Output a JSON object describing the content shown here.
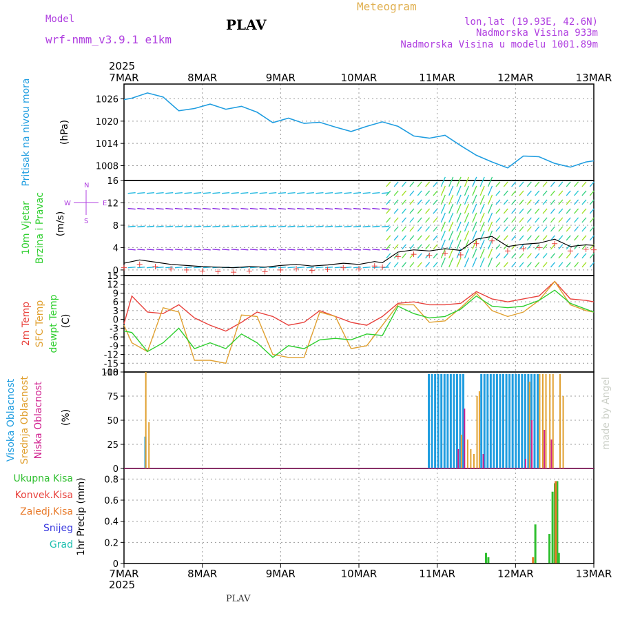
{
  "header": {
    "model_label": "Model",
    "model_name": "wrf-nmm_v3.9.1 e1km",
    "station": "PLAV",
    "meteogram": "Meteogram",
    "lonlat": "lon,lat (19.93E, 42.6N)",
    "altitude": "Nadmorska Visina 933m",
    "model_altitude": "Nadmorska Visina u modelu 1001.89m",
    "year_top": "2025",
    "year_bottom": "2025",
    "footer_station": "PLAV",
    "credit": "made by Angel"
  },
  "colors": {
    "pressure": "#1f9de0",
    "temp2m": "#e8413c",
    "sfc": "#e0a030",
    "dew": "#2fcf2f",
    "high_cloud": "#1f9de0",
    "mid_cloud": "#e0a030",
    "low_cloud": "#d0208f",
    "total_precip": "#2fbf2f",
    "conv_precip": "#e8413c",
    "strat_precip": "#e87a2a",
    "snow": "#3a3adf",
    "graupel": "#20c0b0",
    "purple": "#b040e0"
  },
  "chart_data": [
    {
      "type": "line",
      "panel": "pressure",
      "ylabel_rot": "Pritisak na nivou mora",
      "unit": "(hPa)",
      "x_ticks": [
        "7MAR",
        "8MAR",
        "9MAR",
        "10MAR",
        "11MAR",
        "12MAR",
        "13MAR"
      ],
      "ylim": [
        1004,
        1030
      ],
      "y_ticks": [
        1008,
        1014,
        1020,
        1026
      ],
      "x_days": [
        0,
        0.1,
        0.3,
        0.5,
        0.7,
        0.9,
        1.1,
        1.3,
        1.5,
        1.7,
        1.9,
        2.1,
        2.3,
        2.5,
        2.7,
        2.9,
        3.1,
        3.3,
        3.5,
        3.7,
        3.9,
        4.1,
        4.3,
        4.5,
        4.7,
        4.9,
        5.1,
        5.3,
        5.5,
        5.7,
        5.9,
        6.0
      ],
      "series": [
        {
          "values": [
            1025.8,
            1026.2,
            1027.6,
            1026.5,
            1022.8,
            1023.4,
            1024.6,
            1023.2,
            1024.0,
            1022.4,
            1019.6,
            1020.8,
            1019.4,
            1019.7,
            1018.4,
            1017.2,
            1018.6,
            1019.8,
            1018.6,
            1016.0,
            1015.4,
            1016.2,
            1013.4,
            1010.8,
            1009.0,
            1007.4,
            1010.6,
            1010.4,
            1008.6,
            1007.6,
            1009.0,
            1009.3
          ]
        }
      ]
    },
    {
      "type": "line",
      "panel": "wind",
      "ylabel_rot": [
        "10m Vjetar",
        "Brzina i Pravac"
      ],
      "unit": "(m/s)",
      "compass": [
        "W",
        "E",
        "N",
        "S"
      ],
      "ylim": [
        -1,
        16
      ],
      "y_ticks": [
        0,
        4,
        8,
        12,
        16
      ],
      "x_days": [
        0,
        0.2,
        0.4,
        0.6,
        0.8,
        1.0,
        1.2,
        1.4,
        1.6,
        1.8,
        2.0,
        2.2,
        2.4,
        2.6,
        2.8,
        3.0,
        3.2,
        3.3,
        3.5,
        3.7,
        3.9,
        4.1,
        4.3,
        4.5,
        4.7,
        4.9,
        5.1,
        5.3,
        5.5,
        5.7,
        5.9,
        6.0
      ],
      "series": [
        {
          "values": [
            1.2,
            1.8,
            1.4,
            1.0,
            0.8,
            0.6,
            0.5,
            0.4,
            0.6,
            0.5,
            0.8,
            1.0,
            0.7,
            0.9,
            1.2,
            1.0,
            1.5,
            1.3,
            3.2,
            3.6,
            3.4,
            3.8,
            3.5,
            5.5,
            6.0,
            4.2,
            4.6,
            4.8,
            5.5,
            4.2,
            4.5,
            4.4
          ]
        }
      ]
    },
    {
      "type": "line",
      "panel": "temperature",
      "ylabel_rot": [
        "2m Temp",
        "SFC Temp",
        "dewpt Temp"
      ],
      "unit": "(C)",
      "ylim": [
        -18,
        15
      ],
      "y_ticks": [
        -18,
        -15,
        -12,
        -9,
        -6,
        -3,
        0,
        3,
        6,
        9,
        12,
        15
      ],
      "x_days": [
        0,
        0.1,
        0.3,
        0.5,
        0.7,
        0.9,
        1.1,
        1.3,
        1.5,
        1.7,
        1.9,
        2.1,
        2.3,
        2.5,
        2.7,
        2.9,
        3.1,
        3.3,
        3.5,
        3.7,
        3.9,
        4.1,
        4.3,
        4.5,
        4.7,
        4.9,
        5.1,
        5.3,
        5.5,
        5.7,
        5.9,
        6.0
      ],
      "series": [
        {
          "name": "2m Temp",
          "values": [
            -1.5,
            8.0,
            2.5,
            2.0,
            5.0,
            0.5,
            -2.0,
            -4.0,
            -1.0,
            2.5,
            1.0,
            -2.0,
            -1.0,
            3.0,
            1.0,
            -1.0,
            -2.0,
            1.0,
            5.5,
            6.0,
            5.0,
            5.0,
            5.5,
            9.5,
            7.0,
            6.0,
            7.0,
            8.0,
            13.0,
            7.0,
            6.5,
            6.0
          ]
        },
        {
          "name": "SFC Temp",
          "values": [
            -2.0,
            -8.0,
            -11.0,
            4.0,
            2.5,
            -14.0,
            -14.0,
            -15.0,
            1.5,
            1.0,
            -12.0,
            -13.0,
            -13.0,
            2.5,
            1.0,
            -10.0,
            -9.0,
            -2.0,
            5.0,
            5.0,
            -1.0,
            -0.5,
            4.0,
            9.0,
            3.0,
            1.0,
            2.5,
            6.5,
            13.0,
            5.0,
            3.0,
            2.5
          ]
        },
        {
          "name": "dewpt Temp",
          "values": [
            -4.0,
            -4.5,
            -11.0,
            -8.0,
            -3.0,
            -10.0,
            -8.0,
            -10.0,
            -5.0,
            -8.0,
            -13.0,
            -9.0,
            -10.0,
            -7.0,
            -6.5,
            -7.0,
            -5.0,
            -5.5,
            4.5,
            2.0,
            0.5,
            1.0,
            3.5,
            8.0,
            4.5,
            4.0,
            4.5,
            6.5,
            10.0,
            5.5,
            3.5,
            2.5
          ]
        }
      ]
    },
    {
      "type": "bar",
      "panel": "clouds",
      "ylabel_rot": [
        "Visoka Oblacnost",
        "Srednja Oblacnost",
        "Niska Oblacnost"
      ],
      "unit": "(%)",
      "ylim": [
        0,
        100
      ],
      "y_ticks": [
        0,
        25,
        50,
        75,
        100
      ],
      "series": [
        {
          "name": "Visoka Oblacnost",
          "x_days": [
            0.26,
            3.88,
            3.92,
            3.96,
            4.0,
            4.04,
            4.08,
            4.12,
            4.16,
            4.2,
            4.24,
            4.28,
            4.32,
            4.55,
            4.59,
            4.63,
            4.67,
            4.71,
            4.75,
            4.79,
            4.83,
            4.87,
            4.91,
            4.95,
            4.99,
            5.03,
            5.07,
            5.11,
            5.15,
            5.19,
            5.23,
            5.27
          ],
          "values": [
            33,
            98,
            98,
            98,
            98,
            98,
            98,
            98,
            98,
            98,
            98,
            98,
            98,
            98,
            98,
            98,
            98,
            98,
            98,
            98,
            98,
            98,
            98,
            98,
            98,
            98,
            98,
            98,
            98,
            98,
            98,
            98
          ]
        },
        {
          "name": "Srednja Oblacnost",
          "x_days": [
            0.27,
            0.31,
            4.3,
            4.38,
            4.42,
            4.46,
            4.5,
            4.53,
            5.17,
            5.3,
            5.34,
            5.38,
            5.43,
            5.47,
            5.56,
            5.6
          ],
          "values": [
            100,
            48,
            35,
            30,
            20,
            15,
            75,
            80,
            90,
            98,
            98,
            98,
            98,
            98,
            98,
            75
          ]
        },
        {
          "name": "Niska Oblacnost",
          "x_days": [
            4.26,
            4.34,
            4.58,
            5.12,
            5.2,
            5.36,
            5.45
          ],
          "values": [
            20,
            62,
            15,
            10,
            50,
            40,
            30
          ]
        }
      ]
    },
    {
      "type": "bar",
      "panel": "precip",
      "ylabel_rot": "1hr Precip (mm)",
      "legend": [
        "Ukupna Kisa",
        "Konvek.Kisa",
        "Zaledj.Kisa",
        "Snijeg",
        "Grad"
      ],
      "ylim": [
        0,
        0.9
      ],
      "y_ticks": [
        0,
        0.2,
        0.4,
        0.6,
        0.8
      ],
      "series": [
        {
          "name": "Ukupna Kisa",
          "x_days": [
            4.61,
            4.64,
            5.24,
            5.42,
            5.46,
            5.49,
            5.52,
            5.54
          ],
          "values": [
            0.1,
            0.06,
            0.37,
            0.28,
            0.68,
            0.76,
            0.78,
            0.1
          ]
        },
        {
          "name": "Zaledj.Kisa",
          "x_days": [
            5.21,
            5.5
          ],
          "values": [
            0.06,
            0.78
          ]
        }
      ]
    }
  ]
}
